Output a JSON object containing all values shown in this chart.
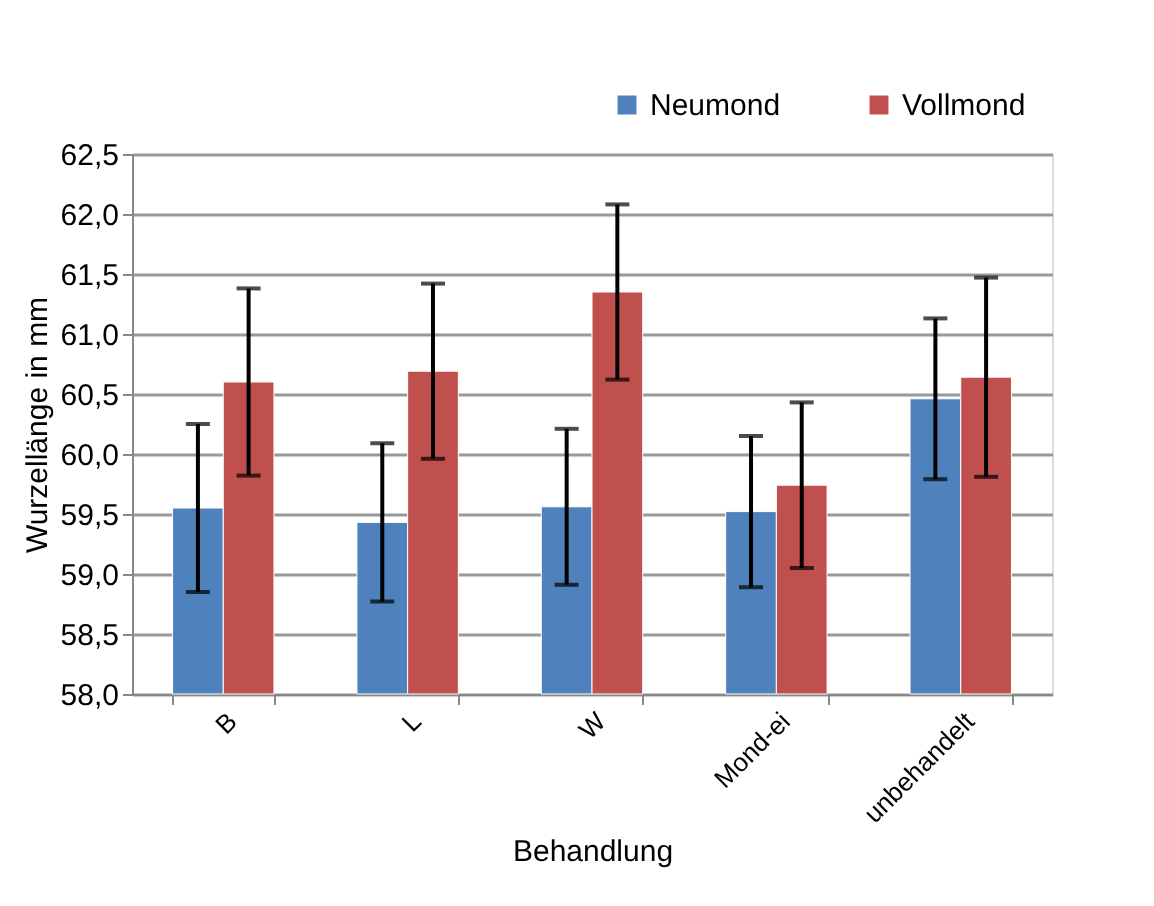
{
  "chart_data": {
    "type": "bar",
    "xlabel": "Behandlung",
    "ylabel": "Wurzellänge in mm",
    "categories": [
      "B",
      "L",
      "W",
      "Mond-ei",
      "unbehandelt"
    ],
    "series": [
      {
        "name": "Neumond",
        "color": "#4f81bd",
        "values": [
          59.55,
          59.43,
          59.56,
          59.52,
          60.46
        ],
        "errors": [
          0.7,
          0.66,
          0.65,
          0.63,
          0.67
        ]
      },
      {
        "name": "Vollmond",
        "color": "#c0504d",
        "values": [
          60.6,
          60.69,
          61.35,
          59.74,
          60.64
        ],
        "errors": [
          0.78,
          0.73,
          0.73,
          0.69,
          0.83
        ]
      }
    ],
    "ylim": [
      58.0,
      62.5
    ],
    "yticks": [
      {
        "value": 58.0,
        "label": "58,0"
      },
      {
        "value": 58.5,
        "label": "58,5"
      },
      {
        "value": 59.0,
        "label": "59,0"
      },
      {
        "value": 59.5,
        "label": "59,5"
      },
      {
        "value": 60.0,
        "label": "60,0"
      },
      {
        "value": 60.5,
        "label": "60,5"
      },
      {
        "value": 61.0,
        "label": "61,0"
      },
      {
        "value": 61.5,
        "label": "61,5"
      },
      {
        "value": 62.0,
        "label": "62,0"
      },
      {
        "value": 62.5,
        "label": "62,5"
      }
    ],
    "grid": "y",
    "legend": "top right"
  }
}
